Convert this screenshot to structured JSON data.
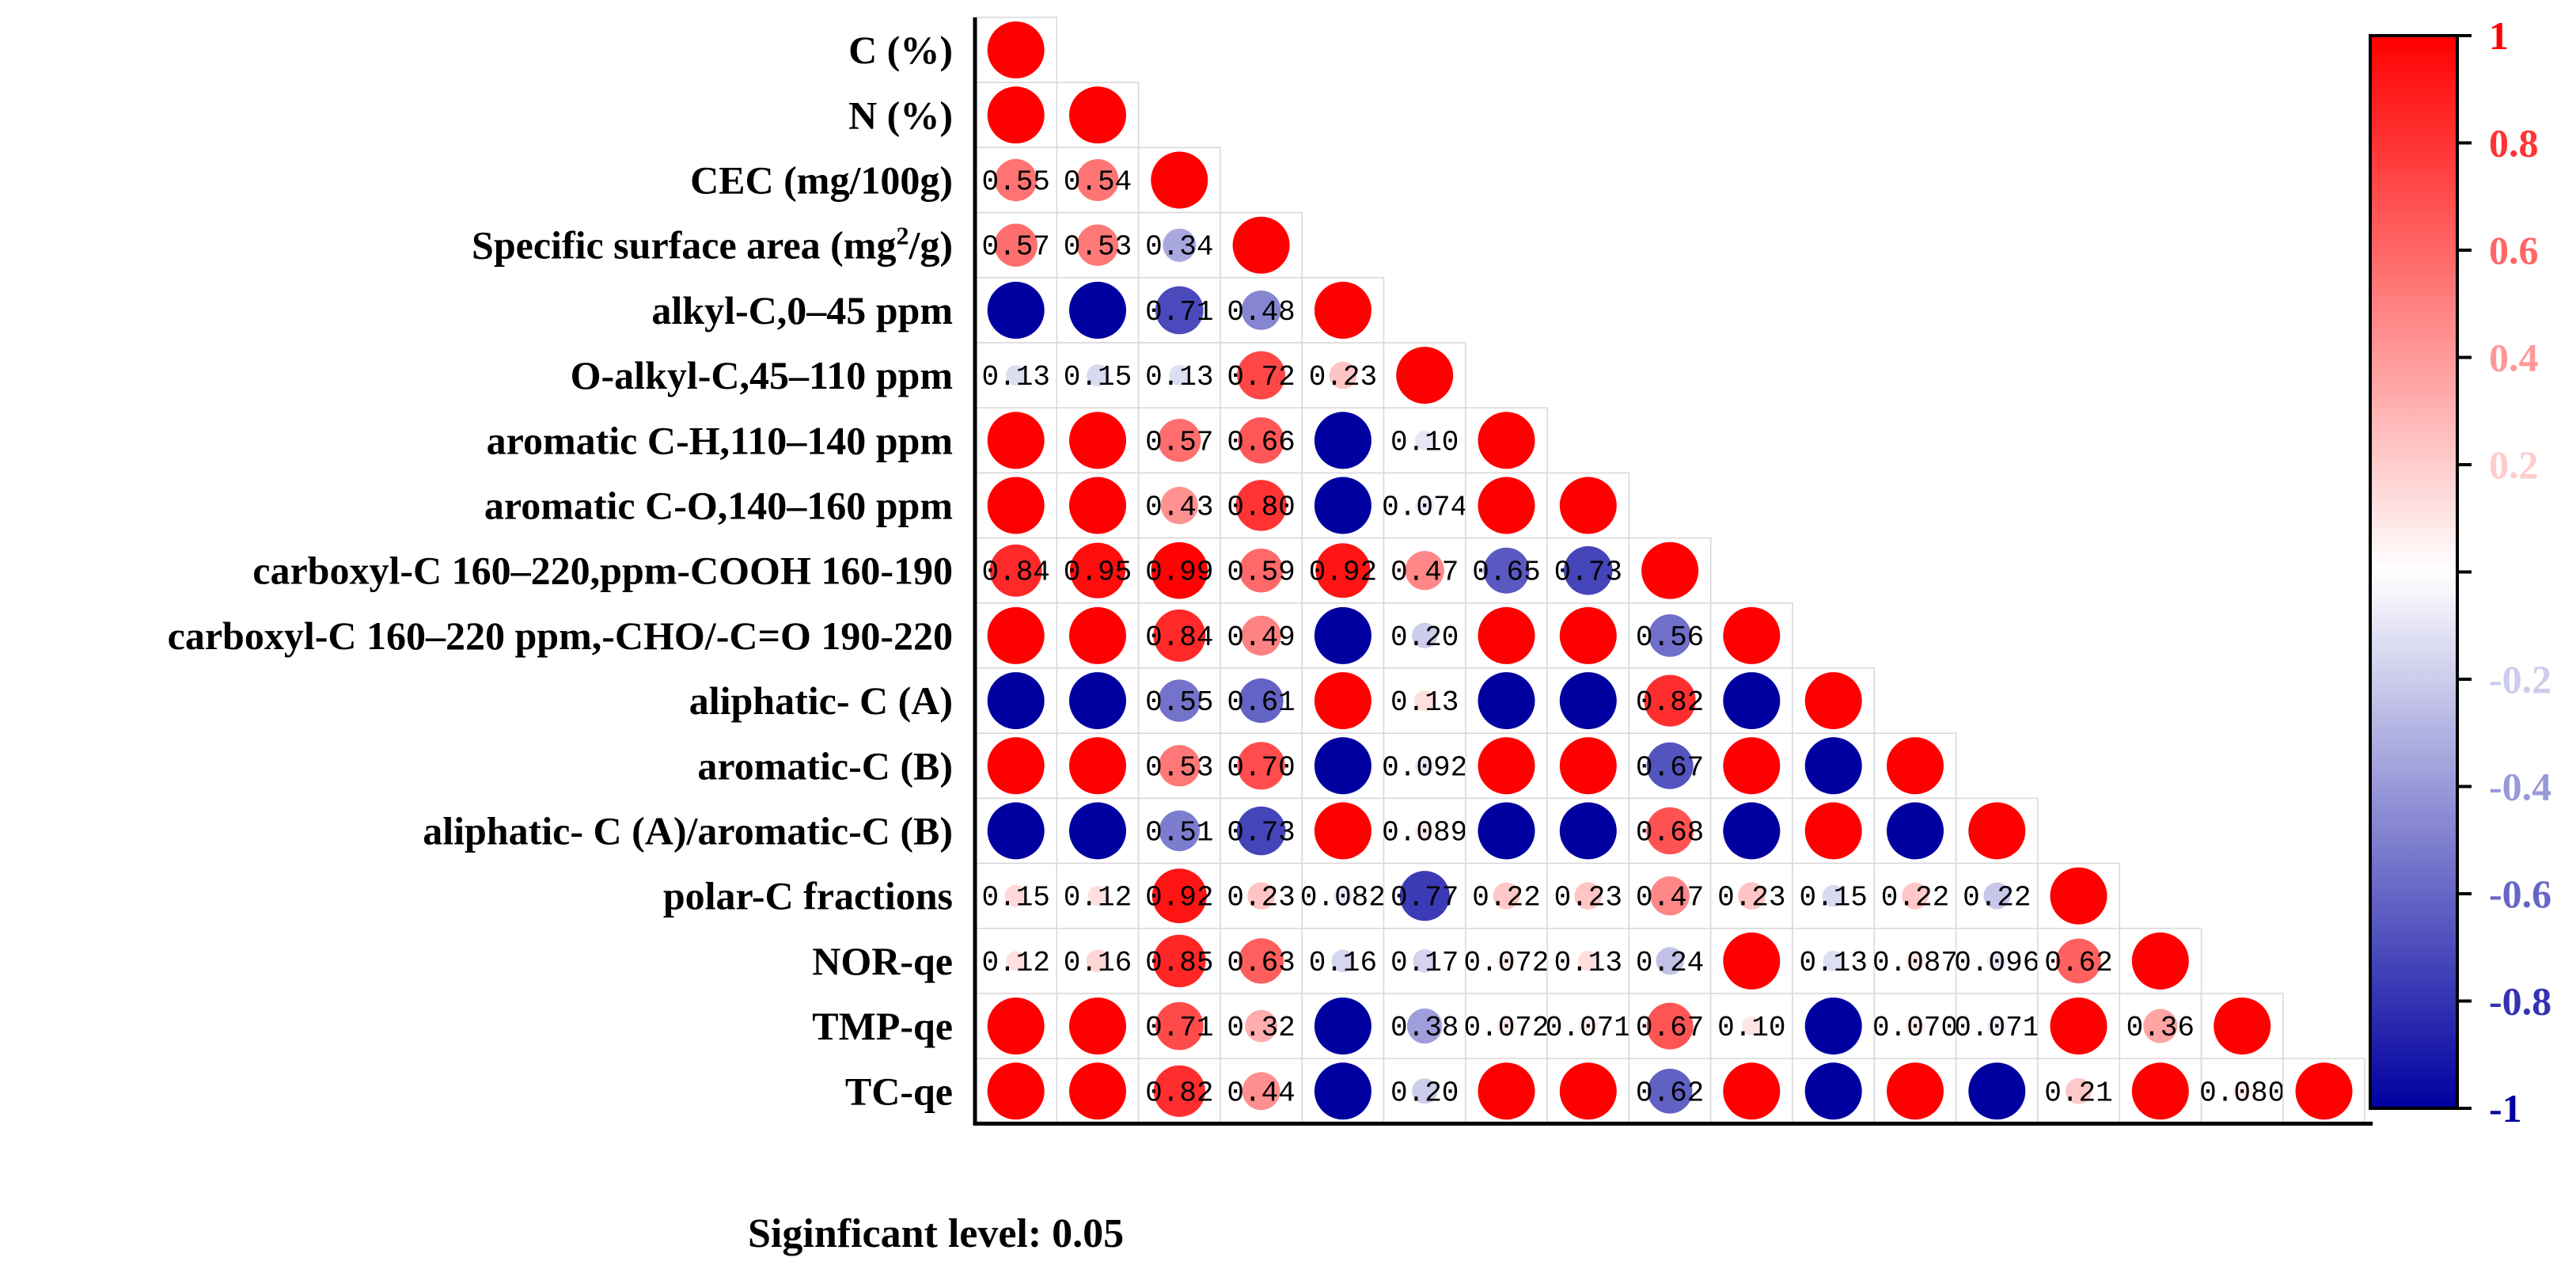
{
  "chart_data": {
    "type": "heatmap",
    "subtype": "lower-triangular correlation matrix (circle glyphs, non-significant coefficients printed as text)",
    "variables": [
      "C (%)",
      "N (%)",
      "CEC (mg/100g)",
      "Specific surface area (mg²/g)",
      "alkyl-C,0–45 ppm",
      "O-alkyl-C,45–110 ppm",
      "aromatic C-H,110–140 ppm",
      "aromatic C-O,140–160 ppm",
      "carboxyl-C 160–220,ppm-COOH 160-190",
      "carboxyl-C 160–220 ppm,-CHO/-C=O 190-220",
      "aliphatic- C (A)",
      "aromatic-C (B)",
      "aliphatic- C (A)/aromatic-C (B)",
      "polar-C fractions",
      "NOR-qe",
      "TMP-qe",
      "TC-qe"
    ],
    "correlations": [
      [
        1
      ],
      [
        1,
        1
      ],
      [
        0.55,
        0.54,
        1
      ],
      [
        0.57,
        0.53,
        -0.34,
        1
      ],
      [
        -1,
        -1,
        -0.71,
        -0.48,
        1
      ],
      [
        -0.13,
        -0.15,
        -0.13,
        0.72,
        0.23,
        1
      ],
      [
        1,
        1,
        0.57,
        0.66,
        -1,
        -0.1,
        1
      ],
      [
        1,
        1,
        0.43,
        0.8,
        -1,
        -0.074,
        1,
        1
      ],
      [
        0.84,
        0.95,
        0.99,
        0.59,
        0.92,
        0.47,
        -0.65,
        -0.73,
        1
      ],
      [
        1,
        1,
        0.84,
        0.49,
        -1,
        -0.2,
        1,
        1,
        -0.56,
        1
      ],
      [
        -1,
        -1,
        -0.55,
        -0.61,
        1,
        0.13,
        -1,
        -1,
        0.82,
        -1,
        1
      ],
      [
        1,
        1,
        0.53,
        0.7,
        -1,
        -0.092,
        1,
        1,
        -0.67,
        1,
        -1,
        1
      ],
      [
        -1,
        -1,
        -0.51,
        -0.73,
        1,
        0.089,
        -1,
        -1,
        0.68,
        -1,
        1,
        -1,
        1
      ],
      [
        0.15,
        0.12,
        0.92,
        0.23,
        -0.082,
        -0.77,
        0.22,
        0.23,
        0.47,
        0.23,
        -0.15,
        0.22,
        -0.22,
        1
      ],
      [
        0.12,
        0.16,
        0.85,
        0.63,
        -0.16,
        -0.17,
        0.072,
        0.13,
        -0.24,
        1,
        -0.13,
        0.087,
        -0.096,
        0.62,
        1
      ],
      [
        1,
        1,
        0.71,
        0.32,
        -1,
        -0.38,
        0.072,
        0.071,
        0.67,
        0.1,
        -1,
        0.07,
        -0.071,
        1,
        0.36,
        1
      ],
      [
        1,
        1,
        0.82,
        0.44,
        -1,
        -0.2,
        1,
        1,
        -0.62,
        1,
        -1,
        1,
        -1,
        0.21,
        1,
        0.08,
        1
      ]
    ],
    "value_labels": [
      [
        null
      ],
      [
        null,
        null
      ],
      [
        "0.55",
        "0.54",
        null
      ],
      [
        "0.57",
        "0.53",
        "0.34",
        null
      ],
      [
        null,
        null,
        "0.71",
        "0.48",
        null
      ],
      [
        "0.13",
        "0.15",
        "0.13",
        "0.72",
        "0.23",
        null
      ],
      [
        null,
        null,
        "0.57",
        "0.66",
        null,
        "0.10",
        null
      ],
      [
        null,
        null,
        "0.43",
        "0.80",
        null,
        "0.074",
        null,
        null
      ],
      [
        "0.84",
        "0.95",
        "0.99",
        "0.59",
        "0.92",
        "0.47",
        "0.65",
        "0.73",
        null
      ],
      [
        null,
        null,
        "0.84",
        "0.49",
        null,
        "0.20",
        null,
        null,
        "0.56",
        null
      ],
      [
        null,
        null,
        "0.55",
        "0.61",
        null,
        "0.13",
        null,
        null,
        "0.82",
        null,
        null
      ],
      [
        null,
        null,
        "0.53",
        "0.70",
        null,
        "0.092",
        null,
        null,
        "0.67",
        null,
        null,
        null
      ],
      [
        null,
        null,
        "0.51",
        "0.73",
        null,
        "0.089",
        null,
        null,
        "0.68",
        null,
        null,
        null,
        null
      ],
      [
        "0.15",
        "0.12",
        "0.92",
        "0.23",
        "0.082",
        "0.77",
        "0.22",
        "0.23",
        "0.47",
        "0.23",
        "0.15",
        "0.22",
        "0.22",
        null
      ],
      [
        "0.12",
        "0.16",
        "0.85",
        "0.63",
        "0.16",
        "0.17",
        "0.072",
        "0.13",
        "0.24",
        null,
        "0.13",
        "0.087",
        "0.096",
        "0.62",
        null
      ],
      [
        null,
        null,
        "0.71",
        "0.32",
        null,
        "0.38",
        "0.072",
        "0.071",
        "0.67",
        "0.10",
        null,
        "0.070",
        "0.071",
        null,
        "0.36",
        null
      ],
      [
        null,
        null,
        "0.82",
        "0.44",
        null,
        "0.20",
        null,
        null,
        "0.62",
        null,
        null,
        null,
        null,
        "0.21",
        null,
        "0.080",
        null
      ]
    ],
    "colorbar": {
      "range": [
        -1,
        1
      ],
      "ticks": [
        {
          "value": 1,
          "label": "1"
        },
        {
          "value": 0.8,
          "label": "0.8"
        },
        {
          "value": 0.6,
          "label": "0.6"
        },
        {
          "value": 0.4,
          "label": "0.4"
        },
        {
          "value": 0.2,
          "label": "0.2"
        },
        {
          "value": 0,
          "label": ""
        },
        {
          "value": -0.2,
          "label": "-0.2"
        },
        {
          "value": -0.4,
          "label": "-0.4"
        },
        {
          "value": -0.6,
          "label": "-0.6"
        },
        {
          "value": -0.8,
          "label": "-0.8"
        },
        {
          "value": -1,
          "label": "-1"
        }
      ],
      "color_positive": "#ff0000",
      "color_zero": "#ffffff",
      "color_negative": "#0000a0"
    },
    "footnote": "Siginficant level: 0.05"
  }
}
